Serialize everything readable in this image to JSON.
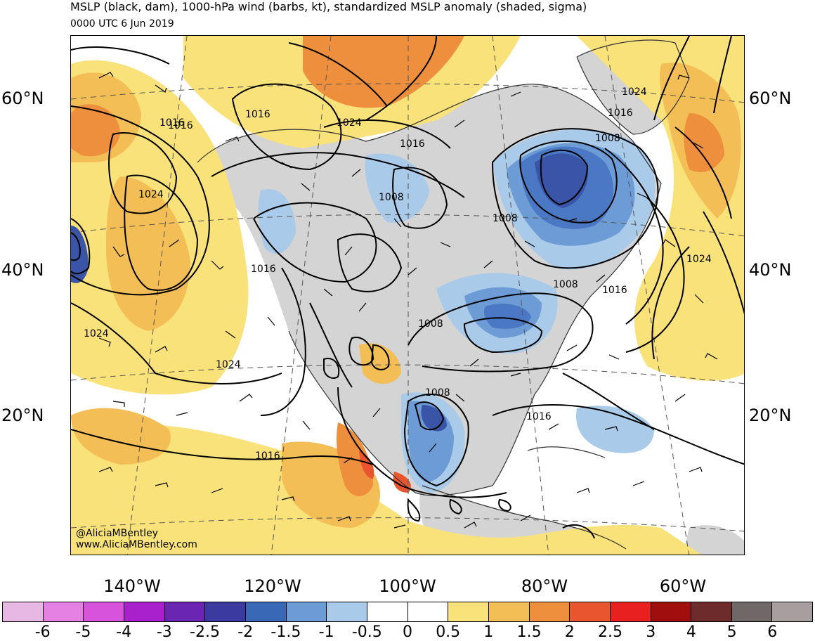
{
  "header": {
    "title": "MSLP (black, dam), 1000-hPa wind (barbs, kt), standardized MSLP anomaly (shaded, sigma)",
    "valid_time": "0000 UTC 6 Jun 2019"
  },
  "map": {
    "lat_labels": [
      "60°N",
      "40°N",
      "20°N"
    ],
    "lon_labels": [
      "140°W",
      "120°W",
      "100°W",
      "80°W",
      "60°W"
    ],
    "isobar_labels": [
      "1016",
      "1024",
      "1016",
      "1024",
      "1008",
      "1016",
      "1008",
      "1008",
      "1024",
      "1016",
      "1016",
      "1024",
      "1024",
      "1016",
      "1008",
      "1008",
      "1016",
      "1024",
      "1016",
      "1008",
      "1016"
    ],
    "shading_colors": {
      "below_minus_2": "#3a55a8",
      "minus_2_to_minus_1_5": "#4a78c4",
      "minus_1_5_to_minus_1": "#6d9bd5",
      "minus_1_to_minus_0_5": "#a9cae8",
      "near_zero": "#ffffff",
      "plus_0_5_to_1": "#f9e27a",
      "plus_1_to_1_5": "#f3be55",
      "plus_1_5_to_2": "#ee8f3e",
      "plus_2_to_2_5": "#e9552e",
      "plus_2_5_to_3": "#dc1f18",
      "land_missing": "#d4d4d4"
    }
  },
  "credits": {
    "twitter": "@AliciaMBentley",
    "website": "www.AliciaMBentley.com"
  },
  "colorbar": {
    "colors": [
      "#e8b8e4",
      "#e581e2",
      "#d853db",
      "#a821cd",
      "#6a26b3",
      "#3b3aa0",
      "#3968b7",
      "#6d9bd5",
      "#a9cae8",
      "#ffffff",
      "#ffffff",
      "#f9e27a",
      "#f3be55",
      "#ee8f3e",
      "#e9552e",
      "#e82020",
      "#a00e0e",
      "#6e2b2b",
      "#706868",
      "#a79f9f"
    ],
    "labels": [
      "-6",
      "-5",
      "-4",
      "-3",
      "-2.5",
      "-2",
      "-1.5",
      "-1",
      "-0.5",
      "0",
      "0.5",
      "1",
      "1.5",
      "2",
      "2.5",
      "3",
      "4",
      "5",
      "6"
    ]
  }
}
